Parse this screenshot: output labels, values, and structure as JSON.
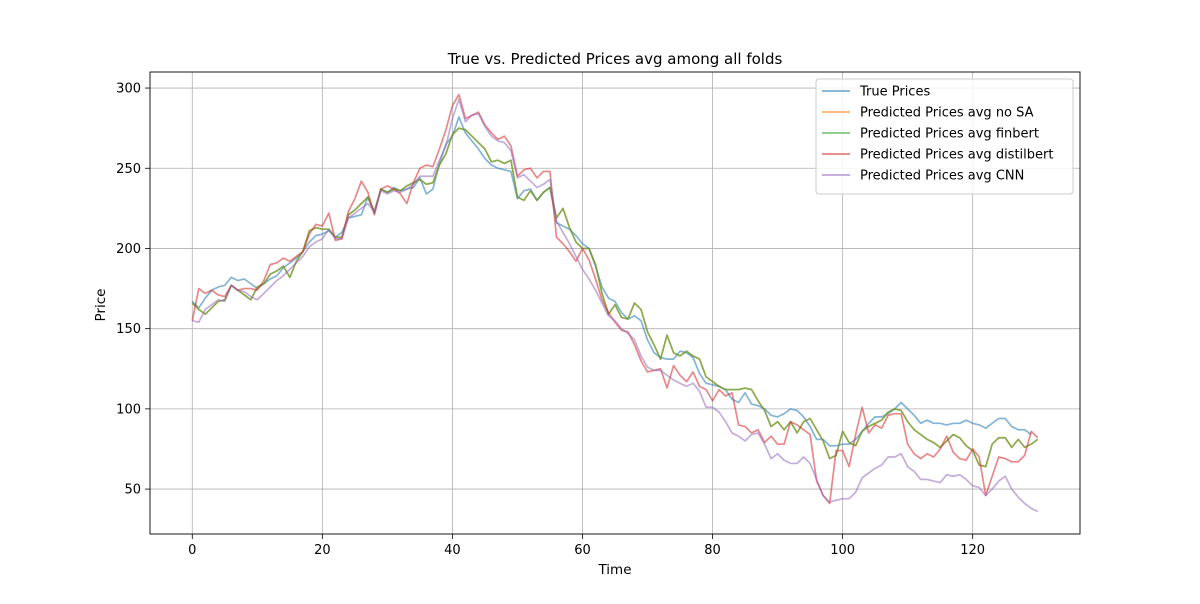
{
  "chart_data": {
    "type": "line",
    "title": "True vs. Predicted Prices avg among all folds",
    "xlabel": "Time",
    "ylabel": "Price",
    "xlim": [
      -6.5,
      136.5
    ],
    "ylim": [
      22,
      310
    ],
    "xticks": [
      0,
      20,
      40,
      60,
      80,
      100,
      120
    ],
    "yticks": [
      50,
      100,
      150,
      200,
      250,
      300
    ],
    "grid": true,
    "legend_position": "top-right",
    "series": [
      {
        "name": "True Prices",
        "color": "#1f77b4",
        "values": [
          167,
          163,
          169,
          174,
          176,
          177,
          182,
          180,
          181,
          178,
          175,
          178,
          181,
          183,
          188,
          191,
          194,
          198,
          204,
          208,
          209,
          211,
          207,
          210,
          219,
          220,
          221,
          232,
          222,
          237,
          235,
          238,
          236,
          237,
          238,
          244,
          234,
          237,
          253,
          265,
          270,
          282,
          272,
          267,
          262,
          256,
          252,
          250,
          249,
          248,
          231,
          236,
          237,
          230,
          235,
          238,
          216,
          214,
          212,
          208,
          203,
          200,
          189,
          176,
          169,
          167,
          160,
          156,
          158,
          155,
          143,
          135,
          132,
          131,
          131,
          136,
          135,
          132,
          122,
          116,
          115,
          114,
          112,
          106,
          104,
          110,
          103,
          102,
          100,
          96,
          95,
          97,
          100,
          99,
          95,
          89,
          81,
          81,
          77,
          77,
          78,
          78,
          81,
          86,
          91,
          95,
          95,
          97,
          100,
          104,
          100,
          96,
          91,
          93,
          91,
          91,
          90,
          91,
          91,
          93,
          91,
          90,
          88,
          91,
          94,
          94,
          89,
          87,
          87,
          84
        ]
      },
      {
        "name": "Predicted Prices avg no SA",
        "color": "#ff7f0e",
        "values": [
          166,
          162,
          159,
          163,
          167,
          168,
          177,
          174,
          171,
          168,
          176,
          178,
          184,
          186,
          189,
          182,
          192,
          198,
          211,
          213,
          212,
          212,
          207,
          207,
          221,
          224,
          228,
          232,
          223,
          237,
          235,
          237,
          236,
          239,
          241,
          243,
          240,
          241,
          252,
          259,
          271,
          275,
          274,
          270,
          266,
          262,
          254,
          255,
          253,
          255,
          232,
          230,
          236,
          230,
          235,
          238,
          219,
          225,
          213,
          204,
          200,
          200,
          190,
          172,
          159,
          165,
          157,
          156,
          166,
          162,
          148,
          140,
          131,
          146,
          135,
          133,
          136,
          133,
          131,
          120,
          117,
          114,
          112,
          112,
          112,
          113,
          112,
          105,
          99,
          89,
          92,
          87,
          92,
          85,
          92,
          94,
          87,
          80,
          69,
          71,
          86,
          79,
          77,
          86,
          89,
          91,
          93,
          98,
          100,
          99,
          92,
          87,
          84,
          81,
          79,
          76,
          80,
          84,
          82,
          77,
          74,
          65,
          64,
          78,
          82,
          82,
          76,
          81,
          76,
          78,
          81
        ]
      },
      {
        "name": "Predicted Prices avg finbert",
        "color": "#2ca02c",
        "values": [
          166,
          162,
          159,
          163,
          167,
          168,
          177,
          174,
          171,
          168,
          176,
          178,
          184,
          186,
          189,
          182,
          192,
          198,
          211,
          213,
          212,
          212,
          207,
          207,
          221,
          224,
          228,
          232,
          223,
          237,
          235,
          237,
          236,
          239,
          241,
          243,
          240,
          241,
          252,
          259,
          271,
          275,
          274,
          270,
          266,
          262,
          254,
          255,
          253,
          255,
          232,
          230,
          236,
          230,
          235,
          238,
          219,
          225,
          213,
          204,
          200,
          200,
          190,
          172,
          159,
          165,
          157,
          156,
          166,
          162,
          148,
          140,
          131,
          146,
          135,
          133,
          136,
          133,
          131,
          120,
          117,
          114,
          112,
          112,
          112,
          113,
          112,
          105,
          99,
          89,
          92,
          87,
          92,
          85,
          92,
          94,
          87,
          80,
          69,
          71,
          86,
          79,
          77,
          86,
          89,
          91,
          93,
          98,
          100,
          99,
          92,
          87,
          84,
          81,
          79,
          76,
          80,
          84,
          82,
          77,
          74,
          65,
          64,
          78,
          82,
          82,
          76,
          81,
          76,
          78,
          81
        ]
      },
      {
        "name": "Predicted Prices avg distilbert",
        "color": "#d62728",
        "values": [
          155,
          175,
          172,
          174,
          171,
          170,
          177,
          174,
          175,
          175,
          174,
          180,
          190,
          191,
          194,
          192,
          195,
          198,
          209,
          215,
          214,
          222,
          205,
          206,
          223,
          231,
          242,
          235,
          221,
          237,
          239,
          237,
          234,
          228,
          241,
          250,
          252,
          251,
          262,
          274,
          289,
          296,
          281,
          283,
          285,
          277,
          272,
          268,
          270,
          264,
          245,
          249,
          250,
          244,
          248,
          248,
          207,
          203,
          198,
          192,
          200,
          193,
          181,
          168,
          160,
          154,
          149,
          148,
          140,
          130,
          123,
          124,
          125,
          113,
          127,
          121,
          117,
          123,
          114,
          112,
          105,
          112,
          108,
          110,
          90,
          89,
          85,
          87,
          79,
          83,
          78,
          78,
          92,
          90,
          87,
          84,
          55,
          46,
          41,
          74,
          74,
          64,
          84,
          101,
          85,
          90,
          88,
          96,
          97,
          97,
          78,
          72,
          69,
          72,
          70,
          75,
          83,
          73,
          69,
          68,
          75,
          70,
          46,
          58,
          70,
          69,
          67,
          67,
          71,
          86,
          82
        ]
      },
      {
        "name": "Predicted Prices avg CNN",
        "color": "#9467bd",
        "values": [
          155,
          154,
          162,
          165,
          168,
          167,
          177,
          174,
          173,
          170,
          168,
          172,
          176,
          180,
          183,
          187,
          191,
          195,
          201,
          204,
          206,
          212,
          206,
          206,
          219,
          222,
          225,
          228,
          223,
          236,
          234,
          236,
          235,
          237,
          240,
          245,
          245,
          245,
          255,
          264,
          281,
          293,
          279,
          283,
          284,
          276,
          270,
          267,
          266,
          261,
          244,
          246,
          242,
          238,
          240,
          243,
          217,
          210,
          203,
          195,
          187,
          181,
          174,
          166,
          158,
          155,
          150,
          147,
          143,
          133,
          126,
          124,
          124,
          121,
          118,
          116,
          114,
          116,
          111,
          101,
          101,
          98,
          92,
          85,
          83,
          80,
          84,
          85,
          78,
          69,
          72,
          68,
          66,
          66,
          70,
          66,
          56,
          46,
          42,
          43,
          44,
          44,
          48,
          57,
          60,
          63,
          65,
          70,
          70,
          72,
          64,
          61,
          56,
          56,
          55,
          54,
          59,
          58,
          59,
          56,
          52,
          51,
          46,
          50,
          55,
          58,
          50,
          45,
          41,
          38,
          36
        ]
      }
    ]
  }
}
